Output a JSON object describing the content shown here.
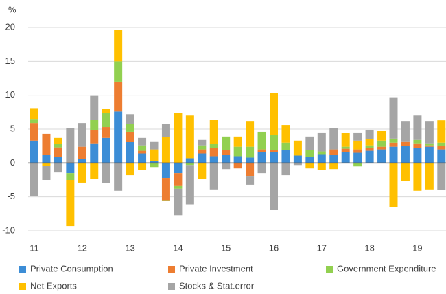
{
  "chart_data": {
    "type": "stacked-bar",
    "y_label": "%",
    "categories": [
      "11",
      null,
      null,
      null,
      "12",
      null,
      null,
      null,
      "13",
      null,
      null,
      null,
      "14",
      null,
      null,
      null,
      "15",
      null,
      null,
      null,
      "16",
      null,
      null,
      null,
      "17",
      null,
      null,
      null,
      "18",
      null,
      null,
      null,
      "19",
      null,
      null
    ],
    "series": [
      {
        "name": "Private Consumption",
        "color": "#3c8dd6",
        "values": [
          3.3,
          1.2,
          0.9,
          -1.5,
          0.6,
          2.9,
          3.7,
          7.6,
          3.1,
          1.4,
          0.3,
          -2.2,
          -1.5,
          0.7,
          1.4,
          1.0,
          1.2,
          1.0,
          0.8,
          1.6,
          1.6,
          1.9,
          1.1,
          0.9,
          1.3,
          1.2,
          1.6,
          1.5,
          1.8,
          2.0,
          2.4,
          2.5,
          2.2,
          2.4,
          2.0
        ]
      },
      {
        "name": "Private Investment",
        "color": "#ed7d31",
        "values": [
          2.6,
          3.1,
          1.4,
          0,
          1.8,
          2.0,
          1.6,
          4.4,
          1.5,
          0.4,
          0,
          -3.3,
          -1.9,
          0,
          0.6,
          1.2,
          0.7,
          -0.8,
          -1.9,
          0.4,
          0.3,
          0,
          0,
          0,
          0,
          0.8,
          0.5,
          0.5,
          0.4,
          0.4,
          0.6,
          0.7,
          0.7,
          0.2,
          0.5
        ]
      },
      {
        "name": "Government Expenditure",
        "color": "#92d050",
        "values": [
          0.6,
          0,
          0.5,
          -1.0,
          0,
          1.5,
          2.1,
          3.0,
          1.2,
          0.8,
          -0.6,
          -0.1,
          -0.4,
          -0.3,
          0.6,
          0.6,
          2.0,
          1.4,
          1.6,
          2.6,
          2.2,
          1.1,
          0,
          1.0,
          0.4,
          0,
          0.3,
          -0.5,
          0.4,
          0.9,
          0.6,
          0,
          0.5,
          0.3,
          0.5
        ]
      },
      {
        "name": "Net Exports",
        "color": "#ffc000",
        "values": [
          1.6,
          -0.4,
          0.9,
          -6.8,
          -2.9,
          -2.4,
          0.6,
          4.6,
          -1.8,
          -1.0,
          1.7,
          3.8,
          7.4,
          6.3,
          -2.4,
          3.6,
          0,
          1.5,
          3.8,
          0,
          6.2,
          2.6,
          2.2,
          -0.8,
          -1.0,
          -0.9,
          2.0,
          1.3,
          0.9,
          1.5,
          -6.5,
          -2.6,
          -4.1,
          -3.9,
          3.3
        ]
      },
      {
        "name": "Stocks & Stat.error",
        "color": "#a5a5a5",
        "values": [
          -4.9,
          -2.1,
          -1.4,
          5.2,
          3.5,
          3.5,
          -3.0,
          -4.1,
          1.4,
          1.1,
          1.2,
          2.0,
          -3.9,
          -5.8,
          0.8,
          -3.9,
          -0.9,
          0,
          -1.3,
          -1.5,
          -6.9,
          -1.8,
          -0.3,
          2.0,
          2.8,
          3.2,
          0,
          1.2,
          1.4,
          0,
          6.1,
          3.0,
          3.6,
          3.3,
          -4.0
        ]
      }
    ],
    "ylim": [
      -10,
      20
    ],
    "yticks": [
      -10,
      -5,
      0,
      5,
      10,
      15,
      20
    ],
    "grid": true
  }
}
